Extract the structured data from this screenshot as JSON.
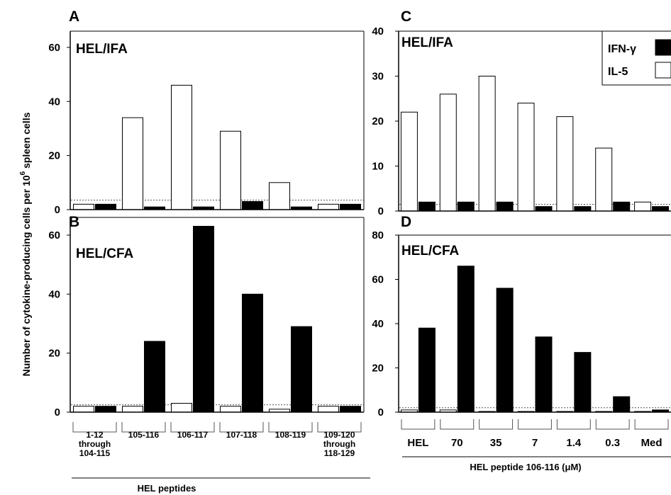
{
  "y_axis_label": "Number of cytokine-producing cells per 10",
  "y_axis_label_sup": "6",
  "y_axis_label_end": " spleen cells",
  "legend": [
    {
      "name": "IFN-γ",
      "color": "#000000"
    },
    {
      "name": "IL-5",
      "color": "#ffffff"
    }
  ],
  "chart_data": [
    {
      "panel": "A",
      "condition": "HEL/IFA",
      "type": "bar",
      "categories": [
        "1-12 through 104-115",
        "105-116",
        "106-117",
        "107-118",
        "108-119",
        "109-120 through 118-129"
      ],
      "series": [
        {
          "name": "IL-5",
          "values": [
            2,
            34,
            46,
            29,
            10,
            2
          ]
        },
        {
          "name": "IFN-γ",
          "values": [
            2,
            1,
            1,
            3,
            1,
            2
          ]
        }
      ],
      "yticks": [
        0,
        20,
        40,
        60
      ],
      "ylim": [
        0,
        66
      ],
      "threshold": 3.5
    },
    {
      "panel": "B",
      "condition": "HEL/CFA",
      "type": "bar",
      "categories": [
        "1-12 through 104-115",
        "105-116",
        "106-117",
        "107-118",
        "108-119",
        "109-120 through 118-129"
      ],
      "series": [
        {
          "name": "IL-5",
          "values": [
            2,
            2,
            3,
            2,
            1,
            2
          ]
        },
        {
          "name": "IFN-γ",
          "values": [
            2,
            24,
            63,
            40,
            29,
            2
          ]
        }
      ],
      "yticks": [
        0,
        20,
        40,
        60
      ],
      "ylim": [
        0,
        66
      ],
      "threshold": 2.5,
      "xlabel": "HEL peptides"
    },
    {
      "panel": "C",
      "condition": "HEL/IFA",
      "type": "bar",
      "categories": [
        "HEL",
        "70",
        "35",
        "7",
        "1.4",
        "0.3",
        "Med"
      ],
      "series": [
        {
          "name": "IL-5",
          "values": [
            22,
            26,
            30,
            24,
            21,
            14,
            2
          ]
        },
        {
          "name": "IFN-γ",
          "values": [
            2,
            2,
            2,
            1,
            1,
            2,
            1
          ]
        }
      ],
      "yticks": [
        0,
        10,
        20,
        30,
        40
      ],
      "ylim": [
        0,
        40
      ],
      "threshold": 1.5
    },
    {
      "panel": "D",
      "condition": "HEL/CFA",
      "type": "bar",
      "categories": [
        "HEL",
        "70",
        "35",
        "7",
        "1.4",
        "0.3",
        "Med"
      ],
      "series": [
        {
          "name": "IL-5",
          "values": [
            1,
            1,
            0,
            0,
            0,
            0,
            0
          ]
        },
        {
          "name": "IFN-γ",
          "values": [
            38,
            66,
            56,
            34,
            27,
            7,
            1
          ]
        }
      ],
      "yticks": [
        0,
        20,
        40,
        60,
        80
      ],
      "ylim": [
        0,
        80
      ],
      "threshold": 2,
      "xlabel": "HEL peptide 106-116 (μM)"
    }
  ]
}
